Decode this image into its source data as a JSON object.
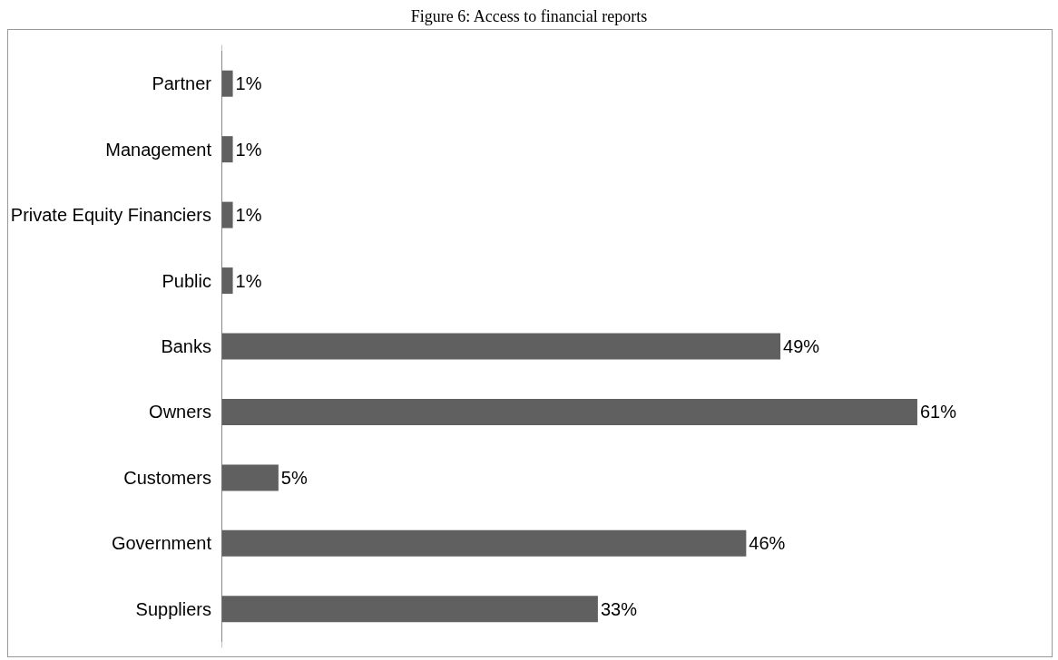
{
  "chart_data": {
    "type": "bar",
    "orientation": "horizontal",
    "title": "Figure 6: Access to financial reports",
    "categories": [
      "Partner",
      "Management",
      "Private Equity Financiers",
      "Public",
      "Banks",
      "Owners",
      "Customers",
      "Government",
      "Suppliers"
    ],
    "values": [
      1,
      1,
      1,
      1,
      49,
      61,
      5,
      46,
      33
    ],
    "value_labels": [
      "1%",
      "1%",
      "1%",
      "1%",
      "49%",
      "61%",
      "5%",
      "46%",
      "33%"
    ],
    "color": "#606060",
    "grid": false
  }
}
